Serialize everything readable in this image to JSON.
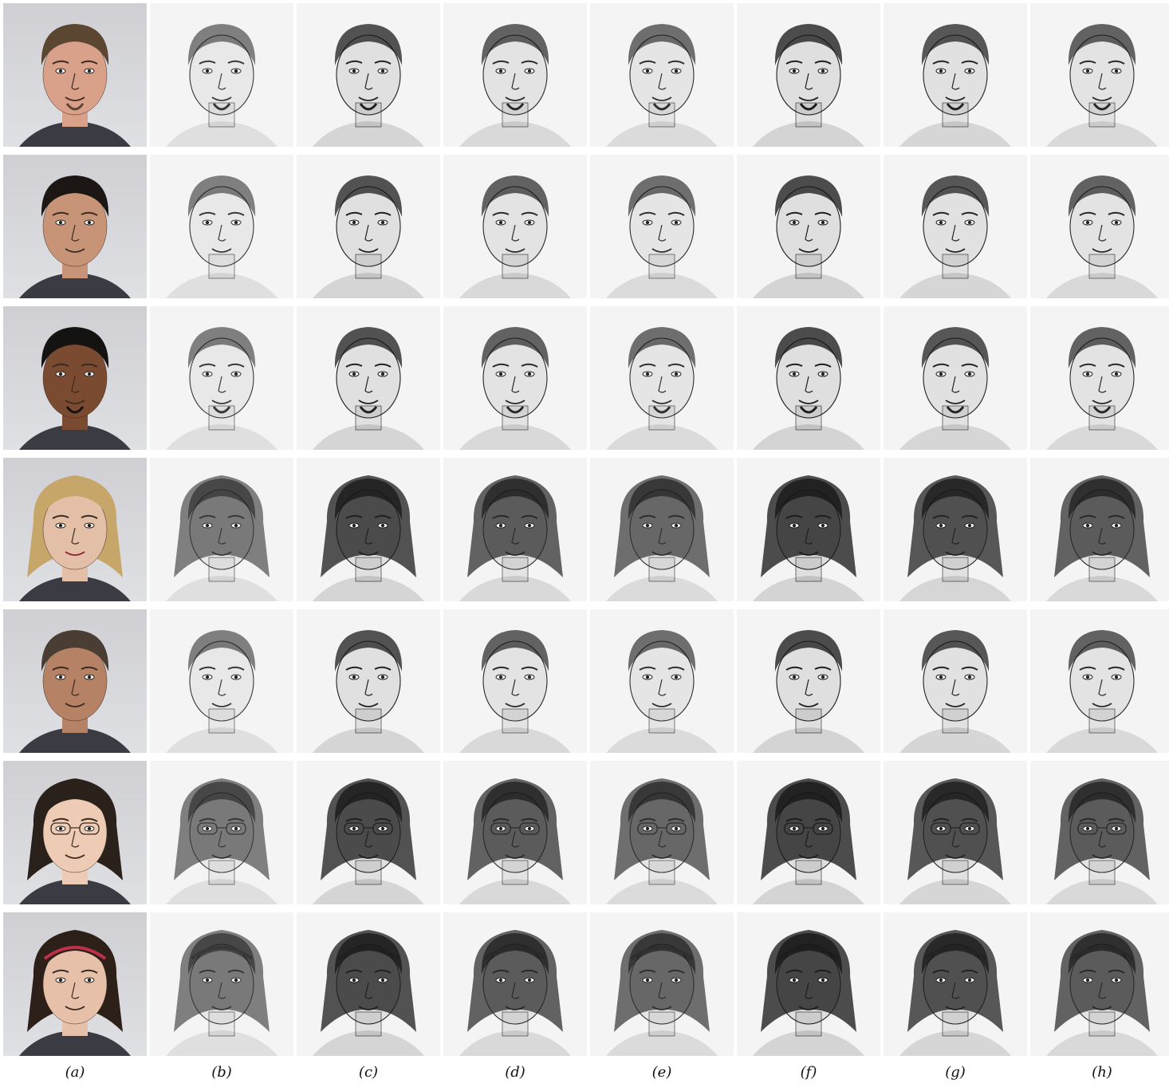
{
  "column_labels": [
    "(a)",
    "(b)",
    "(c)",
    "(d)",
    "(e)",
    "(f)",
    "(g)",
    "(h)"
  ],
  "rows": [
    {
      "subject": "man-long-hair-goatee",
      "hair": "#5b4632",
      "skin": "#d9a08a"
    },
    {
      "subject": "man-dark-hair-suit",
      "hair": "#1c1714",
      "skin": "#c89478"
    },
    {
      "subject": "man-mohawk",
      "hair": "#151212",
      "skin": "#7a4a31"
    },
    {
      "subject": "woman-blonde-curls",
      "hair": "#c7a66a",
      "skin": "#e4bfa8"
    },
    {
      "subject": "man-grey-hair",
      "hair": "#4a3d33",
      "skin": "#b58266"
    },
    {
      "subject": "woman-glasses",
      "hair": "#2a211b",
      "skin": "#edcbb4"
    },
    {
      "subject": "woman-headband",
      "hair": "#2d2019",
      "skin": "#e7c0aa"
    }
  ],
  "headband_color": "#c0304a"
}
